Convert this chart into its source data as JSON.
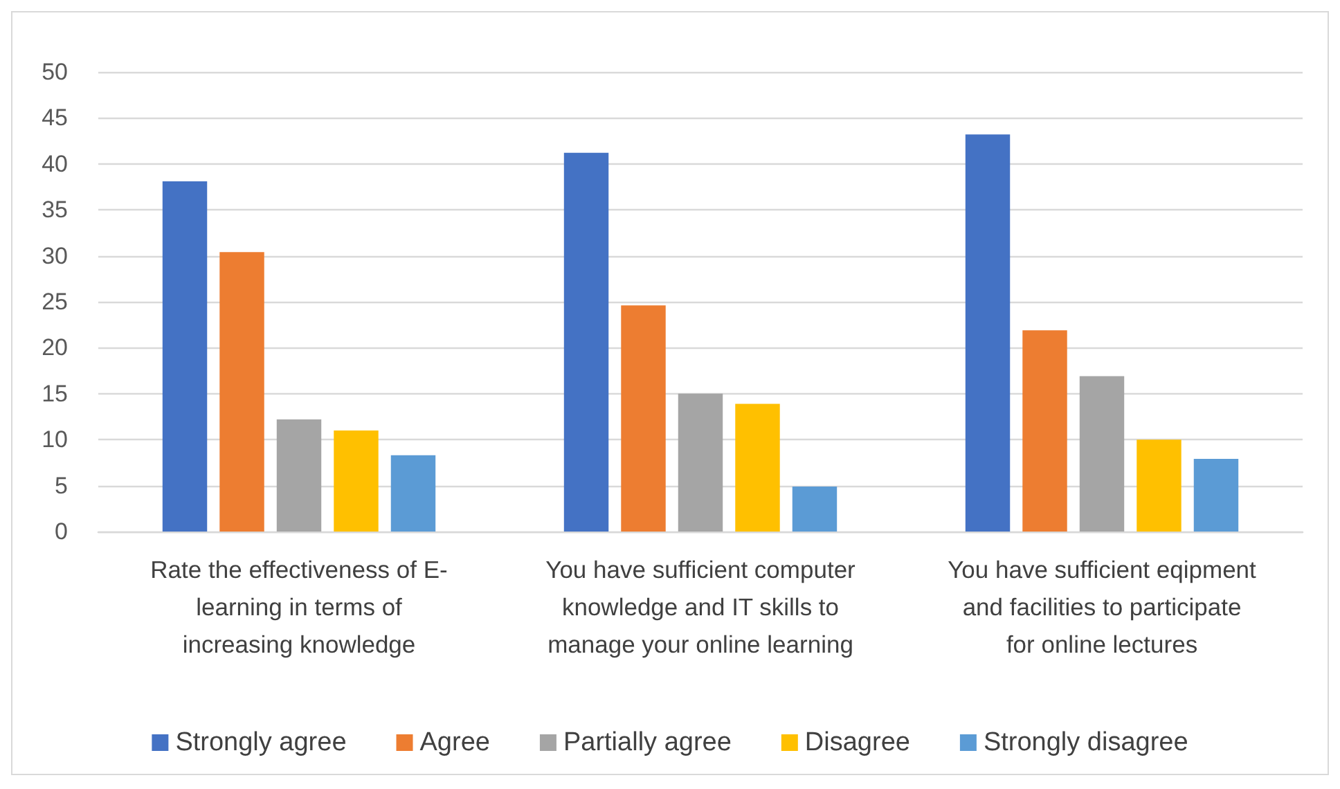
{
  "chart_data": {
    "type": "bar",
    "categories": [
      "Rate the effectiveness of E-\nlearning in terms of\nincreasing knowledge",
      "You have sufficient computer\nknowledge and IT skills to\nmanage your online learning",
      "You have sufficient eqipment\nand facilities to participate\nfor online lectures"
    ],
    "series": [
      {
        "name": "Strongly agree",
        "color": "#4472c4",
        "values": [
          38.1,
          41.2,
          43.2
        ]
      },
      {
        "name": "Agree",
        "color": "#ed7d31",
        "values": [
          30.4,
          24.6,
          21.9
        ]
      },
      {
        "name": "Partially agree",
        "color": "#a5a5a5",
        "values": [
          12.2,
          15.0,
          16.9
        ]
      },
      {
        "name": "Disagree",
        "color": "#ffc000",
        "values": [
          11.0,
          13.9,
          10.0
        ]
      },
      {
        "name": "Strongly disagree",
        "color": "#5b9bd5",
        "values": [
          8.3,
          4.9,
          7.9
        ]
      }
    ],
    "ylim": [
      0,
      50
    ],
    "yticks": [
      0,
      5,
      10,
      15,
      20,
      25,
      30,
      35,
      40,
      45,
      50
    ],
    "grid": "y",
    "legend": "bottom"
  }
}
